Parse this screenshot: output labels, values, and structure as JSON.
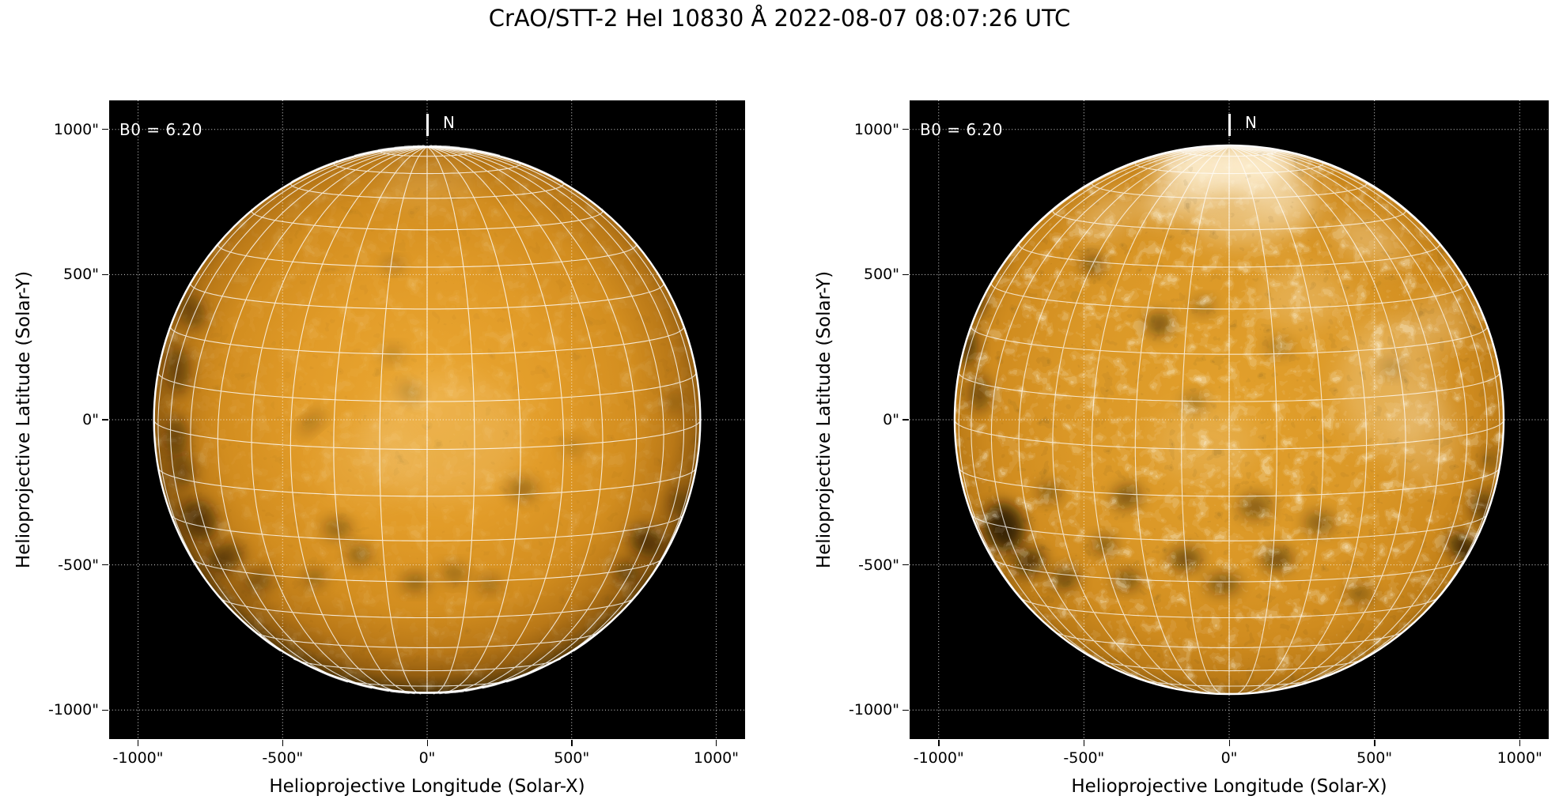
{
  "title": "CrAO/STT-2 HeI 10830 Å 2022-08-07 08:07:26 UTC",
  "shared": {
    "xlabel": "Helioprojective Longitude (Solar-X)",
    "ylabel": "Helioprojective Latitude (Solar-Y)",
    "b0_label": "B0 = 6.20",
    "north_label": "N",
    "x_tick_labels": [
      "-1000\"",
      "-500\"",
      "0\"",
      "500\"",
      "1000\""
    ],
    "y_tick_labels": [
      "1000\"",
      "500\"",
      "0\"",
      "-500\"",
      "-1000\""
    ],
    "x_tick_values": [
      -1000,
      -500,
      0,
      500,
      1000
    ],
    "y_tick_values": [
      1000,
      500,
      0,
      -500,
      -1000
    ]
  },
  "chart_data": {
    "type": "heatmap",
    "title": "CrAO/STT-2 HeI 10830 Å 2022-08-07 08:07:26 UTC",
    "description": "Two full-disk solar intensity maps in the HeI 10830 Angstrom line with a heliographic Stonyhurst grid overlay. Left: original intensity map with limb darkening. Right: contrast-enhanced map with pixelated texture, bright north-polar region and stronger dark absorption features.",
    "observation": {
      "observatory": "CrAO",
      "telescope": "STT-2",
      "spectral_line": "HeI",
      "wavelength_angstrom": 10830,
      "datetime_utc": "2022-08-07 08:07:26",
      "b0_deg": 6.2
    },
    "axes": {
      "xlabel": "Helioprojective Longitude (Solar-X)",
      "ylabel": "Helioprojective Latitude (Solar-Y)",
      "x_range_arcsec": [
        -1100,
        1100
      ],
      "y_range_arcsec": [
        -1100,
        1100
      ],
      "x_ticks_arcsec": [
        -1000,
        -500,
        0,
        500,
        1000
      ],
      "y_ticks_arcsec": [
        1000,
        500,
        0,
        -500,
        -1000
      ],
      "tick_gridlines": "dotted-white",
      "background_color": "#000000"
    },
    "solar_disk": {
      "radius_arcsec": 945,
      "grid_spacing_deg": 10,
      "grid_color": "#ffffff",
      "limb_color": "#ffffff",
      "north_marker_arcsec": [
        0,
        1010
      ]
    },
    "panels": [
      {
        "name": "left",
        "style": "original intensity map with limb darkening",
        "gradient_stops": [
          [
            0,
            "#eba833"
          ],
          [
            0.45,
            "#e19b28"
          ],
          [
            0.72,
            "#d28d1f"
          ],
          [
            0.86,
            "#b97817"
          ],
          [
            0.94,
            "#945e10"
          ],
          [
            0.985,
            "#61400a"
          ],
          [
            1,
            "#462d06"
          ]
        ],
        "noise": {
          "base_frequency": 0.045,
          "octaves": 3,
          "seed": 7,
          "light_opacity": 0.26,
          "dark_opacity": 0.3
        },
        "grid_opacity": 0.8,
        "dark_features": [
          [
            -814,
            373,
            42,
            60,
            20,
            0.45
          ],
          [
            -862,
            170,
            38,
            80,
            0,
            0.5
          ],
          [
            -868,
            -60,
            36,
            70,
            0,
            0.5
          ],
          [
            -845,
            -175,
            40,
            55,
            10,
            0.45
          ],
          [
            -790,
            -345,
            58,
            72,
            30,
            0.58
          ],
          [
            -700,
            -475,
            64,
            46,
            25,
            0.52
          ],
          [
            -585,
            -555,
            50,
            34,
            15,
            0.42
          ],
          [
            -400,
            -10,
            55,
            22,
            40,
            0.28
          ],
          [
            -310,
            -375,
            48,
            34,
            0,
            0.38
          ],
          [
            -235,
            -465,
            42,
            32,
            0,
            0.42
          ],
          [
            -390,
            -545,
            38,
            28,
            0,
            0.38
          ],
          [
            -120,
            225,
            40,
            26,
            0,
            0.22
          ],
          [
            -118,
            532,
            32,
            20,
            0,
            0.32
          ],
          [
            -60,
            95,
            45,
            28,
            -30,
            0.22
          ],
          [
            -40,
            -560,
            48,
            30,
            0,
            0.38
          ],
          [
            95,
            -530,
            44,
            30,
            0,
            0.33
          ],
          [
            215,
            -568,
            40,
            26,
            0,
            0.33
          ],
          [
            330,
            -240,
            52,
            38,
            0,
            0.32
          ],
          [
            505,
            -95,
            40,
            28,
            0,
            0.18
          ],
          [
            758,
            -420,
            60,
            48,
            -35,
            0.58
          ],
          [
            690,
            -525,
            46,
            34,
            -25,
            0.48
          ],
          [
            872,
            -285,
            32,
            48,
            0,
            0.42
          ],
          [
            855,
            60,
            26,
            40,
            0,
            0.28
          ]
        ],
        "bright_features": [
          [
            60,
            -60,
            280,
            215,
            0,
            0.15
          ],
          [
            0,
            810,
            170,
            70,
            0,
            0.13
          ],
          [
            -200,
            -150,
            180,
            140,
            0,
            0.08
          ]
        ]
      },
      {
        "name": "right",
        "style": "contrast-enhanced map, limb darkening removed",
        "gradient_stops": [
          [
            0,
            "#e2a02c"
          ],
          [
            0.55,
            "#db9827"
          ],
          [
            0.82,
            "#d08c1f"
          ],
          [
            0.95,
            "#bb7b17"
          ],
          [
            1,
            "#996511"
          ]
        ],
        "noise": {
          "base_frequency": 0.05,
          "octaves": 3,
          "seed": 11,
          "light_opacity": 0.75,
          "dark_opacity": 0.58
        },
        "grid_opacity": 0.75,
        "dark_features": [
          [
            -888,
            430,
            42,
            75,
            10,
            0.7
          ],
          [
            -905,
            255,
            38,
            70,
            0,
            0.6
          ],
          [
            -858,
            90,
            36,
            60,
            0,
            0.5
          ],
          [
            -818,
            550,
            40,
            42,
            25,
            0.45
          ],
          [
            -470,
            535,
            36,
            30,
            0,
            0.55
          ],
          [
            -240,
            330,
            48,
            38,
            0,
            0.5
          ],
          [
            -90,
            390,
            40,
            26,
            0,
            0.32
          ],
          [
            170,
            250,
            44,
            30,
            0,
            0.28
          ],
          [
            -775,
            -370,
            70,
            85,
            15,
            0.8
          ],
          [
            -688,
            -490,
            56,
            45,
            25,
            0.65
          ],
          [
            -565,
            -545,
            48,
            36,
            10,
            0.55
          ],
          [
            -620,
            -250,
            40,
            32,
            0,
            0.42
          ],
          [
            -430,
            -432,
            42,
            30,
            0,
            0.48
          ],
          [
            -350,
            -552,
            46,
            32,
            0,
            0.5
          ],
          [
            -352,
            -265,
            52,
            40,
            20,
            0.48
          ],
          [
            -150,
            -480,
            56,
            40,
            0,
            0.52
          ],
          [
            -20,
            -565,
            58,
            34,
            0,
            0.48
          ],
          [
            165,
            -480,
            52,
            40,
            0,
            0.52
          ],
          [
            90,
            -300,
            58,
            42,
            0,
            0.42
          ],
          [
            310,
            -355,
            52,
            38,
            0,
            0.42
          ],
          [
            450,
            -600,
            48,
            30,
            0,
            0.38
          ],
          [
            815,
            -445,
            70,
            40,
            -38,
            0.75
          ],
          [
            878,
            -300,
            44,
            55,
            0,
            0.55
          ],
          [
            900,
            -140,
            30,
            40,
            0,
            0.32
          ],
          [
            -120,
            60,
            42,
            30,
            0,
            0.3
          ],
          [
            560,
            180,
            40,
            28,
            0,
            0.22
          ]
        ],
        "bright_features": [
          [
            0,
            880,
            250,
            95,
            0,
            0.9
          ],
          [
            -150,
            780,
            160,
            70,
            20,
            0.6
          ],
          [
            150,
            790,
            170,
            70,
            -20,
            0.6
          ],
          [
            60,
            690,
            200,
            80,
            0,
            0.45
          ],
          [
            -420,
            700,
            120,
            55,
            30,
            0.35
          ],
          [
            480,
            620,
            130,
            60,
            -25,
            0.35
          ],
          [
            550,
            120,
            170,
            230,
            0,
            0.25
          ],
          [
            680,
            -60,
            110,
            160,
            0,
            0.22
          ],
          [
            250,
            420,
            150,
            100,
            0,
            0.22
          ],
          [
            -80,
            -80,
            180,
            130,
            0,
            0.15
          ],
          [
            720,
            330,
            100,
            80,
            0,
            0.25
          ]
        ]
      }
    ]
  }
}
